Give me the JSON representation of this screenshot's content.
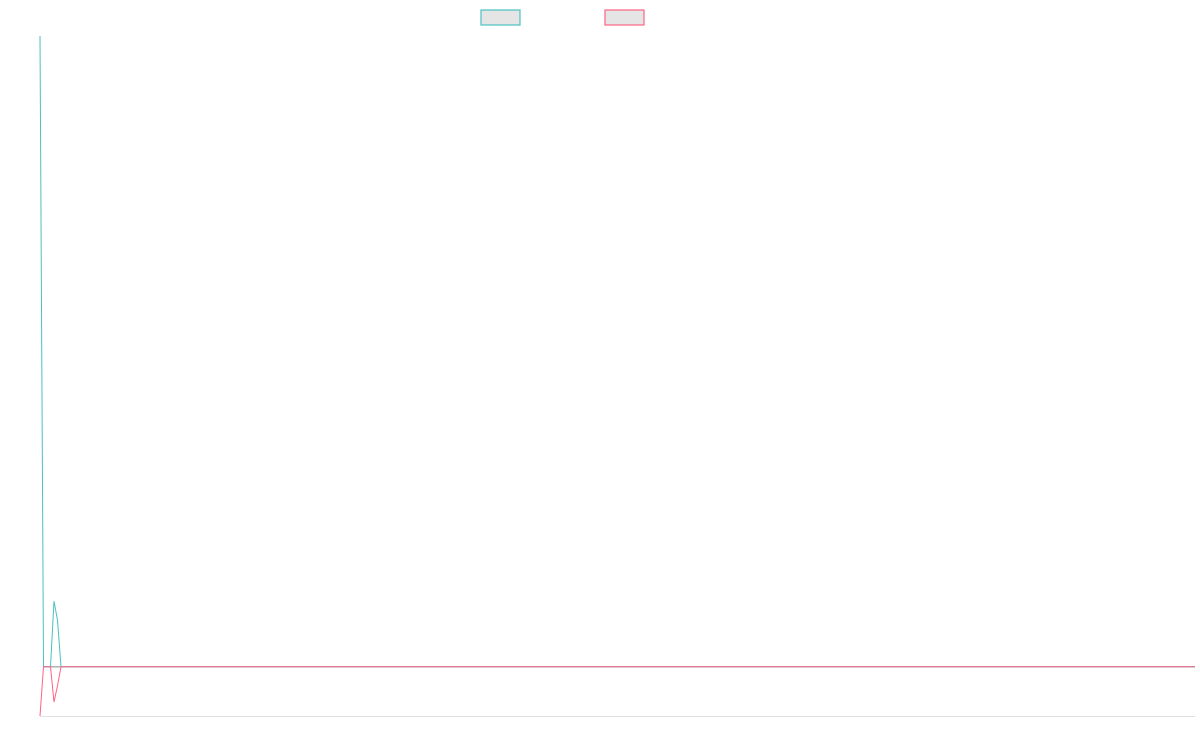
{
  "chart_data": {
    "type": "line",
    "title": "",
    "xlabel": "",
    "ylabel": "",
    "legend": {
      "placement": "top",
      "labels_visible": false
    },
    "grid": false,
    "xlim": [
      0,
      330
    ],
    "ylim": [
      -0.078,
      1
    ],
    "series": [
      {
        "color": "#4bc0c0",
        "x": [
          0,
          1,
          2,
          3,
          4,
          5,
          6,
          330
        ],
        "values": [
          1,
          0,
          0,
          0,
          0.104,
          0.074,
          0,
          0
        ]
      },
      {
        "color": "#ff6384",
        "x": [
          0,
          1,
          2,
          3,
          4,
          5,
          6,
          330
        ],
        "values": [
          -0.078,
          0,
          0,
          0,
          -0.056,
          -0.03,
          0,
          0
        ]
      }
    ],
    "zero_line_color": "#999999",
    "axis_color": "#e0e0e0"
  }
}
